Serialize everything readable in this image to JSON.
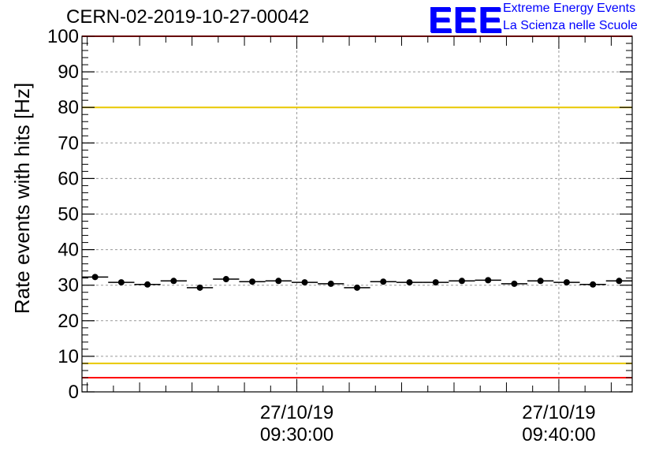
{
  "header": {
    "run_id": "CERN-02-2019-10-27-00042",
    "logo_text": "EEE",
    "logo_line1": "Extreme Energy Events",
    "logo_line2": "La Scienza nelle Scuole"
  },
  "colors": {
    "logo": "#0000ff",
    "red_limit": "#ff0000",
    "yellow_limit": "#e8c800",
    "grid": "#999999",
    "marker": "#000000"
  },
  "chart_data": {
    "type": "scatter",
    "title": "CERN-02-2019-10-27-00042",
    "xlabel": "",
    "ylabel": "Rate events with hits [Hz]",
    "ylim": [
      0,
      100
    ],
    "yticks": [
      0,
      10,
      20,
      30,
      40,
      50,
      60,
      70,
      80,
      90,
      100
    ],
    "xlim_minutes": [
      -8.2,
      12.8
    ],
    "x_tick_labels": [
      {
        "minute": 0,
        "date": "27/10/19",
        "time": "09:30:00"
      },
      {
        "minute": 10,
        "date": "27/10/19",
        "time": "09:40:00"
      }
    ],
    "grid": true,
    "bin_width_minutes": 1,
    "series": [
      {
        "name": "rate",
        "x_minutes": [
          -7.7,
          -6.7,
          -5.7,
          -4.7,
          -3.7,
          -2.7,
          -1.7,
          -0.7,
          0.3,
          1.3,
          2.3,
          3.3,
          4.3,
          5.3,
          6.3,
          7.3,
          8.3,
          9.3,
          10.3,
          11.3,
          12.3
        ],
        "values": [
          32.3,
          30.8,
          30.2,
          31.2,
          29.3,
          31.7,
          31.0,
          31.2,
          30.8,
          30.4,
          29.3,
          31.0,
          30.8,
          30.8,
          31.2,
          31.4,
          30.4,
          31.2,
          30.8,
          30.2,
          31.2
        ]
      }
    ],
    "reference_lines": [
      {
        "name": "upper-red-limit",
        "value": 100,
        "color": "#ff0000"
      },
      {
        "name": "upper-yellow-limit",
        "value": 80,
        "color": "#e8c800"
      },
      {
        "name": "lower-yellow-limit",
        "value": 8,
        "color": "#e8c800"
      },
      {
        "name": "lower-red-limit",
        "value": 4,
        "color": "#ff0000"
      }
    ]
  }
}
